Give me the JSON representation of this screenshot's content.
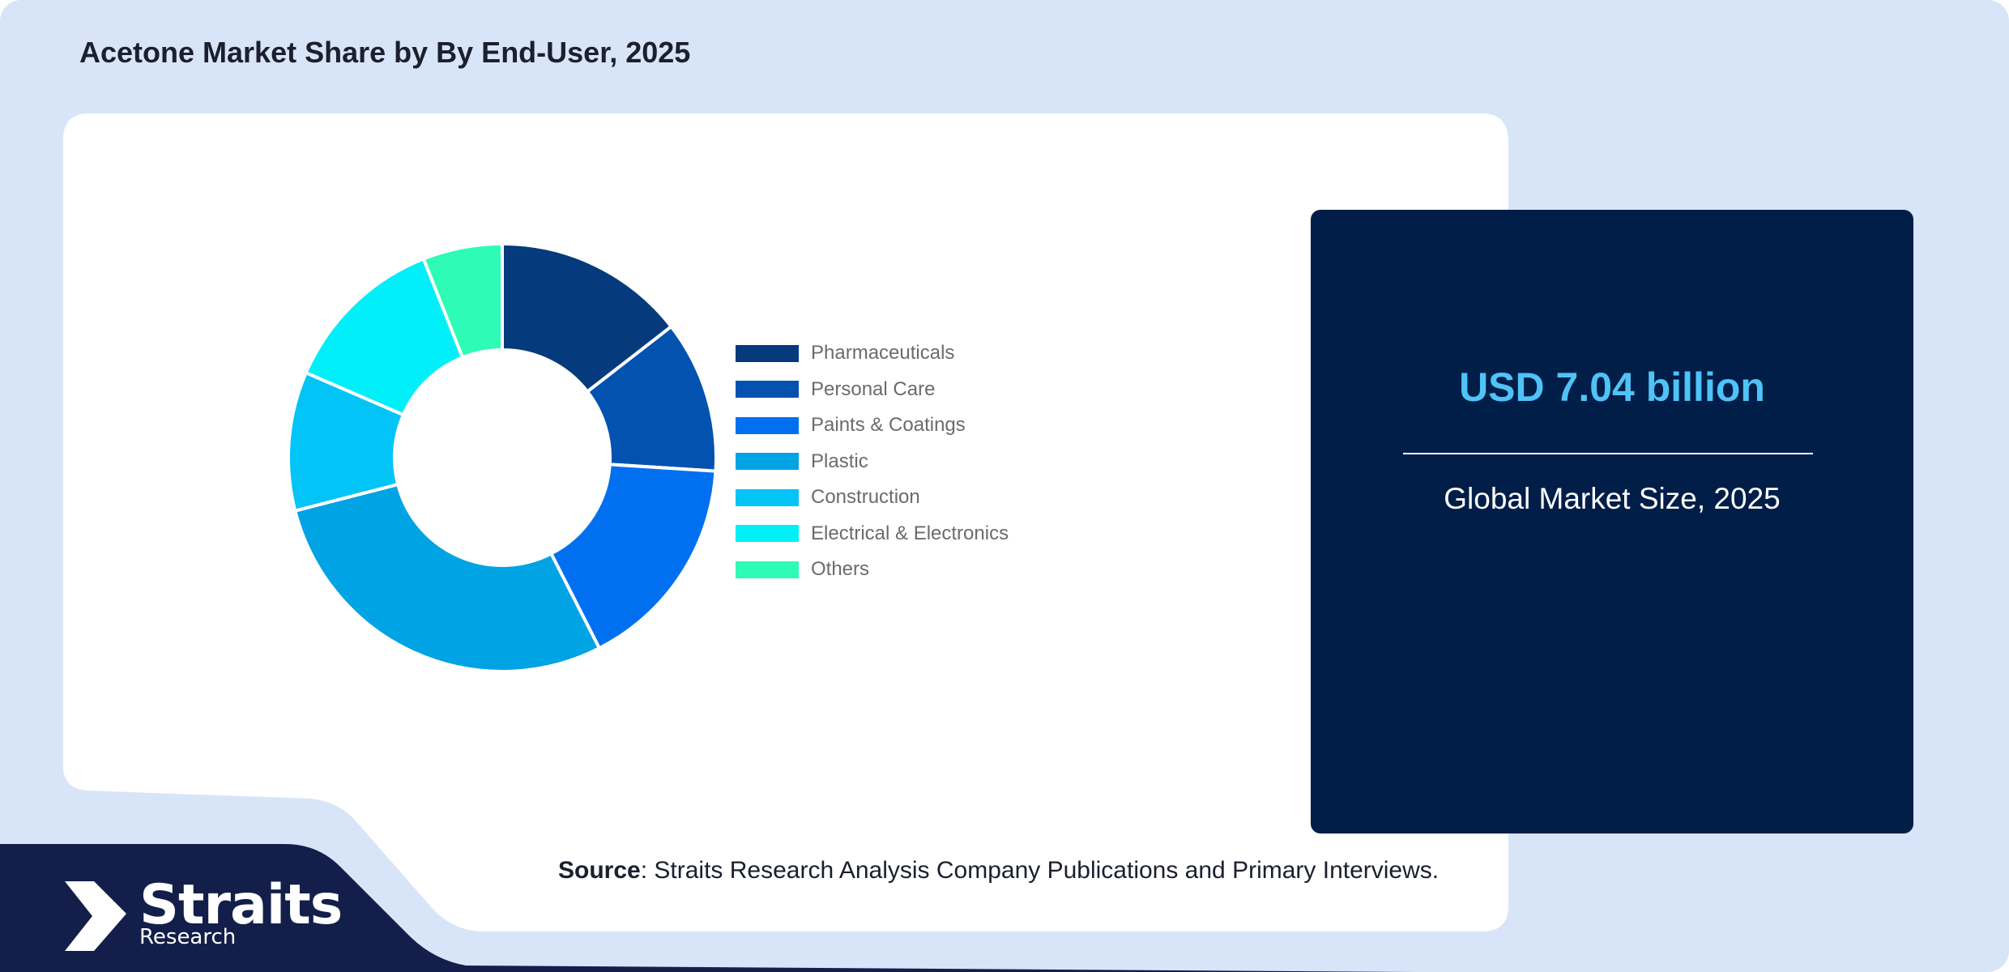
{
  "title": "Acetone Market Share by By End-User, 2025",
  "chart_data": {
    "type": "pie",
    "donut": true,
    "title": "Acetone Market Share by By End-User, 2025",
    "legend_position": "right",
    "categories": [
      "Pharmaceuticals",
      "Personal Care",
      "Paints & Coatings",
      "Plastic",
      "Construction",
      "Electrical & Electronics",
      "Others"
    ],
    "values": [
      14.5,
      11.5,
      16.5,
      28.5,
      10.5,
      12.5,
      6.0
    ],
    "colors": [
      "#053a7c",
      "#0452b0",
      "#0170f0",
      "#00a3e4",
      "#03c4f7",
      "#00eff8",
      "#2efbb5"
    ]
  },
  "market": {
    "value": "USD 7.04 billion",
    "label": "Global Market Size, 2025"
  },
  "source": {
    "label": "Source",
    "text": ": Straits Research Analysis Company Publications and Primary Interviews."
  },
  "logo": {
    "name": "Straits",
    "sub": "Research"
  },
  "colors": {
    "background": "#d8e5f8",
    "card": "#001e48",
    "footer": "#131f4a",
    "value_accent": "#4fc3f7"
  }
}
